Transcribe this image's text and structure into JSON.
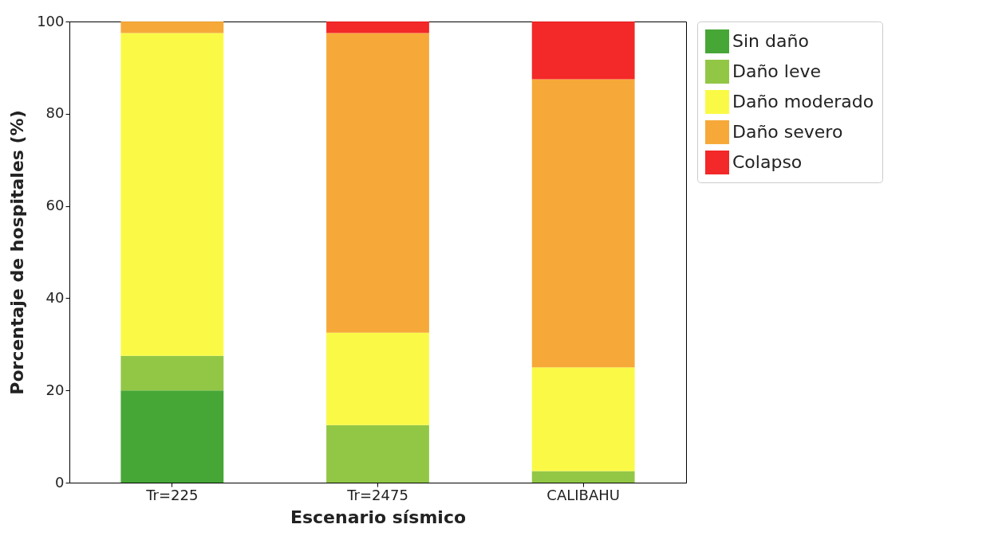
{
  "chart_data": {
    "type": "bar",
    "stacked": true,
    "xlabel": "Escenario sísmico",
    "ylabel": "Porcentaje de hospitales (%)",
    "categories": [
      "Tr=225",
      "Tr=2475",
      "CALIBAHU"
    ],
    "series": [
      {
        "name": "Sin daño",
        "color": "#3ca22c",
        "values": [
          20,
          0,
          0
        ]
      },
      {
        "name": "Daño leve",
        "color": "#8cc43c",
        "values": [
          7.5,
          12.5,
          2.5
        ]
      },
      {
        "name": "Daño moderado",
        "color": "#fafa3c",
        "values": [
          70,
          20,
          22.5
        ]
      },
      {
        "name": "Daño severo",
        "color": "#f6a42e",
        "values": [
          2.5,
          65,
          62.5
        ]
      },
      {
        "name": "Colapso",
        "color": "#f21c1c",
        "values": [
          0,
          2.5,
          12.5
        ]
      }
    ],
    "ylim": [
      0,
      100
    ],
    "yticks": [
      0,
      20,
      40,
      60,
      80,
      100
    ],
    "grid": false,
    "legend": "top right"
  }
}
